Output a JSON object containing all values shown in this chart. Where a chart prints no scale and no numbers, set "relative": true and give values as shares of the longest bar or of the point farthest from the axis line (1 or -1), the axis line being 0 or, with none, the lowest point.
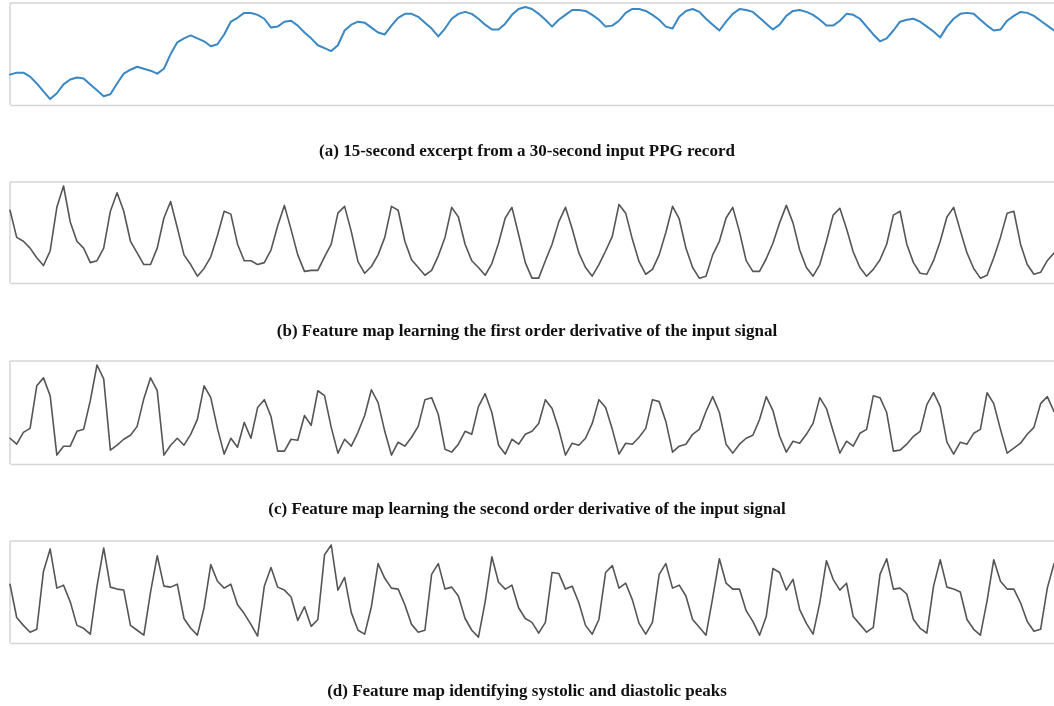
{
  "chart_data": [
    {
      "type": "line",
      "title": "(a) 15-second excerpt from a 30-second input PPG record",
      "relative": true,
      "color": "#3a87c2",
      "categories": [
        null,
        null,
        null,
        null,
        null,
        null,
        null,
        null,
        null,
        null,
        null,
        null,
        null,
        null,
        null,
        null,
        null,
        null,
        null,
        null,
        null,
        null,
        null,
        null,
        null,
        null,
        null,
        null,
        null,
        null,
        null,
        null,
        null,
        null,
        null,
        null,
        null,
        null,
        null,
        null,
        null,
        null,
        null,
        null,
        null,
        null,
        null,
        null,
        null,
        null,
        null,
        null,
        null,
        null,
        null,
        null,
        null,
        null,
        null,
        null,
        null,
        null,
        null,
        null,
        null,
        null,
        null,
        null,
        null,
        null,
        null,
        null,
        null,
        null,
        null,
        null,
        null,
        null,
        null,
        null,
        null,
        null,
        null,
        null,
        null,
        null,
        null,
        null,
        null,
        null,
        null,
        null,
        null,
        null,
        null,
        null,
        null,
        null,
        null,
        null,
        null,
        null,
        null,
        null,
        null,
        null,
        null,
        null,
        null,
        null,
        null,
        null,
        null,
        null,
        null,
        null,
        null,
        null,
        null,
        null,
        null,
        null,
        null,
        null,
        null,
        null,
        null,
        null,
        null,
        null,
        null,
        null,
        null,
        null,
        null,
        null,
        null,
        null,
        null,
        null,
        null,
        null,
        null,
        null,
        null,
        null,
        null,
        null,
        null,
        null,
        null,
        null,
        null,
        null,
        null,
        null,
        null
      ],
      "values": [
        0.31,
        0.33,
        0.33,
        0.29,
        0.22,
        0.14,
        0.06,
        0.12,
        0.21,
        0.26,
        0.28,
        0.27,
        0.21,
        0.15,
        0.09,
        0.11,
        0.22,
        0.32,
        0.36,
        0.39,
        0.37,
        0.35,
        0.32,
        0.37,
        0.52,
        0.64,
        0.68,
        0.71,
        0.68,
        0.65,
        0.6,
        0.62,
        0.72,
        0.85,
        0.89,
        0.94,
        0.94,
        0.92,
        0.88,
        0.79,
        0.8,
        0.85,
        0.86,
        0.81,
        0.74,
        0.68,
        0.61,
        0.58,
        0.55,
        0.61,
        0.76,
        0.82,
        0.85,
        0.84,
        0.79,
        0.74,
        0.72,
        0.81,
        0.89,
        0.93,
        0.93,
        0.9,
        0.84,
        0.78,
        0.7,
        0.78,
        0.88,
        0.93,
        0.95,
        0.93,
        0.88,
        0.82,
        0.77,
        0.77,
        0.83,
        0.92,
        0.98,
        1.0,
        0.98,
        0.93,
        0.87,
        0.8,
        0.87,
        0.92,
        0.97,
        0.97,
        0.96,
        0.92,
        0.87,
        0.8,
        0.81,
        0.86,
        0.94,
        0.98,
        0.98,
        0.96,
        0.92,
        0.87,
        0.8,
        0.78,
        0.9,
        0.96,
        0.98,
        0.95,
        0.88,
        0.82,
        0.76,
        0.85,
        0.93,
        0.98,
        0.97,
        0.95,
        0.89,
        0.83,
        0.77,
        0.82,
        0.91,
        0.96,
        0.97,
        0.95,
        0.92,
        0.87,
        0.81,
        0.81,
        0.86,
        0.93,
        0.92,
        0.88,
        0.8,
        0.72,
        0.65,
        0.68,
        0.76,
        0.85,
        0.87,
        0.88,
        0.85,
        0.8,
        0.75,
        0.69,
        0.8,
        0.88,
        0.93,
        0.94,
        0.93,
        0.87,
        0.81,
        0.76,
        0.77,
        0.86,
        0.91,
        0.95,
        0.94,
        0.91,
        0.86,
        0.81,
        0.76
      ]
    },
    {
      "type": "line",
      "title": "(b) Feature map learning the first order derivative of the input signal",
      "relative": true,
      "color": "#555555",
      "categories": [
        null,
        null,
        null,
        null,
        null,
        null,
        null,
        null,
        null,
        null,
        null,
        null,
        null,
        null,
        null,
        null,
        null,
        null,
        null,
        null,
        null,
        null,
        null,
        null,
        null,
        null,
        null,
        null,
        null,
        null,
        null,
        null,
        null,
        null,
        null,
        null,
        null,
        null,
        null,
        null,
        null,
        null,
        null,
        null,
        null,
        null,
        null,
        null,
        null,
        null,
        null,
        null,
        null,
        null,
        null,
        null,
        null,
        null,
        null,
        null,
        null,
        null,
        null,
        null,
        null,
        null,
        null,
        null,
        null,
        null,
        null,
        null,
        null,
        null,
        null,
        null,
        null,
        null,
        null,
        null,
        null,
        null,
        null,
        null,
        null,
        null,
        null,
        null,
        null,
        null,
        null,
        null,
        null,
        null,
        null,
        null,
        null,
        null,
        null,
        null,
        null,
        null,
        null,
        null,
        null,
        null,
        null,
        null,
        null,
        null,
        null,
        null,
        null,
        null,
        null,
        null,
        null,
        null,
        null,
        null,
        null,
        null,
        null,
        null,
        null,
        null,
        null,
        null,
        null,
        null,
        null,
        null,
        null,
        null,
        null,
        null,
        null,
        null,
        null,
        null,
        null,
        null,
        null,
        null,
        null,
        null,
        null,
        null,
        null,
        null,
        null,
        null,
        null,
        null,
        null,
        null,
        null
      ],
      "values": [
        0.75,
        0.47,
        0.43,
        0.36,
        0.26,
        0.18,
        0.33,
        0.78,
        1.0,
        0.63,
        0.43,
        0.36,
        0.21,
        0.23,
        0.36,
        0.74,
        0.93,
        0.74,
        0.43,
        0.31,
        0.19,
        0.19,
        0.36,
        0.67,
        0.84,
        0.57,
        0.29,
        0.19,
        0.07,
        0.15,
        0.27,
        0.49,
        0.74,
        0.71,
        0.4,
        0.23,
        0.23,
        0.19,
        0.21,
        0.34,
        0.59,
        0.8,
        0.55,
        0.29,
        0.12,
        0.13,
        0.13,
        0.27,
        0.4,
        0.72,
        0.79,
        0.53,
        0.22,
        0.1,
        0.17,
        0.29,
        0.47,
        0.79,
        0.75,
        0.43,
        0.24,
        0.16,
        0.08,
        0.13,
        0.28,
        0.47,
        0.78,
        0.68,
        0.4,
        0.23,
        0.16,
        0.08,
        0.2,
        0.41,
        0.67,
        0.78,
        0.5,
        0.21,
        0.05,
        0.05,
        0.23,
        0.4,
        0.63,
        0.78,
        0.56,
        0.31,
        0.16,
        0.07,
        0.19,
        0.33,
        0.48,
        0.81,
        0.72,
        0.45,
        0.22,
        0.09,
        0.14,
        0.29,
        0.52,
        0.79,
        0.66,
        0.36,
        0.16,
        0.05,
        0.07,
        0.29,
        0.43,
        0.67,
        0.78,
        0.53,
        0.23,
        0.12,
        0.12,
        0.25,
        0.41,
        0.62,
        0.8,
        0.62,
        0.34,
        0.16,
        0.07,
        0.19,
        0.43,
        0.7,
        0.77,
        0.56,
        0.32,
        0.16,
        0.07,
        0.14,
        0.24,
        0.4,
        0.7,
        0.74,
        0.4,
        0.21,
        0.1,
        0.09,
        0.23,
        0.43,
        0.68,
        0.78,
        0.54,
        0.31,
        0.15,
        0.05,
        0.08,
        0.26,
        0.47,
        0.72,
        0.74,
        0.4,
        0.19,
        0.09,
        0.11,
        0.23,
        0.31
      ]
    },
    {
      "type": "line",
      "title": "(c) Feature map learning the second order derivative of the input signal",
      "relative": true,
      "color": "#555555",
      "categories": [
        null,
        null,
        null,
        null,
        null,
        null,
        null,
        null,
        null,
        null,
        null,
        null,
        null,
        null,
        null,
        null,
        null,
        null,
        null,
        null,
        null,
        null,
        null,
        null,
        null,
        null,
        null,
        null,
        null,
        null,
        null,
        null,
        null,
        null,
        null,
        null,
        null,
        null,
        null,
        null,
        null,
        null,
        null,
        null,
        null,
        null,
        null,
        null,
        null,
        null,
        null,
        null,
        null,
        null,
        null,
        null,
        null,
        null,
        null,
        null,
        null,
        null,
        null,
        null,
        null,
        null,
        null,
        null,
        null,
        null,
        null,
        null,
        null,
        null,
        null,
        null,
        null,
        null,
        null,
        null,
        null,
        null,
        null,
        null,
        null,
        null,
        null,
        null,
        null,
        null,
        null,
        null,
        null,
        null,
        null,
        null,
        null,
        null,
        null,
        null,
        null,
        null,
        null,
        null,
        null,
        null,
        null,
        null,
        null,
        null,
        null,
        null,
        null,
        null,
        null,
        null,
        null,
        null,
        null,
        null,
        null,
        null,
        null,
        null,
        null,
        null,
        null,
        null,
        null,
        null,
        null,
        null,
        null,
        null,
        null,
        null,
        null,
        null,
        null,
        null,
        null,
        null,
        null,
        null,
        null,
        null,
        null,
        null,
        null,
        null,
        null,
        null,
        null,
        null,
        null,
        null,
        null
      ],
      "values": [
        0.26,
        0.2,
        0.32,
        0.36,
        0.79,
        0.87,
        0.69,
        0.09,
        0.18,
        0.18,
        0.33,
        0.35,
        0.64,
        1.0,
        0.86,
        0.14,
        0.19,
        0.25,
        0.29,
        0.38,
        0.66,
        0.87,
        0.74,
        0.09,
        0.19,
        0.26,
        0.19,
        0.3,
        0.45,
        0.79,
        0.67,
        0.36,
        0.1,
        0.26,
        0.17,
        0.42,
        0.26,
        0.57,
        0.65,
        0.48,
        0.13,
        0.13,
        0.25,
        0.24,
        0.49,
        0.39,
        0.74,
        0.69,
        0.37,
        0.11,
        0.25,
        0.18,
        0.32,
        0.49,
        0.75,
        0.62,
        0.33,
        0.09,
        0.22,
        0.18,
        0.27,
        0.38,
        0.65,
        0.67,
        0.5,
        0.15,
        0.12,
        0.2,
        0.33,
        0.3,
        0.58,
        0.71,
        0.52,
        0.19,
        0.1,
        0.25,
        0.2,
        0.3,
        0.33,
        0.41,
        0.65,
        0.56,
        0.35,
        0.09,
        0.21,
        0.19,
        0.26,
        0.41,
        0.65,
        0.57,
        0.35,
        0.1,
        0.21,
        0.2,
        0.27,
        0.36,
        0.65,
        0.63,
        0.43,
        0.12,
        0.18,
        0.2,
        0.3,
        0.35,
        0.53,
        0.68,
        0.52,
        0.2,
        0.11,
        0.2,
        0.26,
        0.29,
        0.45,
        0.68,
        0.54,
        0.28,
        0.12,
        0.23,
        0.21,
        0.3,
        0.41,
        0.67,
        0.56,
        0.33,
        0.11,
        0.23,
        0.18,
        0.31,
        0.35,
        0.69,
        0.67,
        0.52,
        0.13,
        0.14,
        0.2,
        0.28,
        0.33,
        0.6,
        0.72,
        0.58,
        0.22,
        0.1,
        0.22,
        0.2,
        0.31,
        0.35,
        0.72,
        0.61,
        0.35,
        0.11,
        0.16,
        0.21,
        0.3,
        0.37,
        0.61,
        0.68,
        0.53
      ]
    },
    {
      "type": "line",
      "title": "(d) Feature map identifying systolic and diastolic peaks",
      "relative": true,
      "color": "#555555",
      "categories": [
        null,
        null,
        null,
        null,
        null,
        null,
        null,
        null,
        null,
        null,
        null,
        null,
        null,
        null,
        null,
        null,
        null,
        null,
        null,
        null,
        null,
        null,
        null,
        null,
        null,
        null,
        null,
        null,
        null,
        null,
        null,
        null,
        null,
        null,
        null,
        null,
        null,
        null,
        null,
        null,
        null,
        null,
        null,
        null,
        null,
        null,
        null,
        null,
        null,
        null,
        null,
        null,
        null,
        null,
        null,
        null,
        null,
        null,
        null,
        null,
        null,
        null,
        null,
        null,
        null,
        null,
        null,
        null,
        null,
        null,
        null,
        null,
        null,
        null,
        null,
        null,
        null,
        null,
        null,
        null,
        null,
        null,
        null,
        null,
        null,
        null,
        null,
        null,
        null,
        null,
        null,
        null,
        null,
        null,
        null,
        null,
        null,
        null,
        null,
        null,
        null,
        null,
        null,
        null,
        null,
        null,
        null,
        null,
        null,
        null,
        null,
        null,
        null,
        null,
        null,
        null,
        null,
        null,
        null,
        null,
        null,
        null,
        null,
        null,
        null,
        null,
        null,
        null,
        null,
        null,
        null,
        null,
        null,
        null,
        null,
        null,
        null,
        null,
        null,
        null,
        null,
        null,
        null,
        null,
        null,
        null,
        null,
        null,
        null,
        null,
        null,
        null,
        null,
        null,
        null,
        null,
        null
      ],
      "values": [
        0.6,
        0.26,
        0.18,
        0.11,
        0.14,
        0.73,
        0.96,
        0.56,
        0.59,
        0.42,
        0.18,
        0.15,
        0.09,
        0.58,
        0.97,
        0.57,
        0.55,
        0.54,
        0.18,
        0.13,
        0.08,
        0.52,
        0.89,
        0.58,
        0.57,
        0.6,
        0.25,
        0.15,
        0.08,
        0.36,
        0.8,
        0.63,
        0.56,
        0.6,
        0.39,
        0.3,
        0.19,
        0.07,
        0.58,
        0.77,
        0.57,
        0.54,
        0.47,
        0.23,
        0.37,
        0.17,
        0.24,
        0.9,
        1.0,
        0.54,
        0.67,
        0.31,
        0.13,
        0.09,
        0.37,
        0.81,
        0.66,
        0.56,
        0.55,
        0.39,
        0.19,
        0.11,
        0.13,
        0.7,
        0.81,
        0.55,
        0.57,
        0.48,
        0.25,
        0.13,
        0.06,
        0.42,
        0.88,
        0.62,
        0.55,
        0.59,
        0.36,
        0.25,
        0.21,
        0.1,
        0.21,
        0.72,
        0.71,
        0.55,
        0.58,
        0.41,
        0.18,
        0.09,
        0.24,
        0.72,
        0.79,
        0.56,
        0.61,
        0.44,
        0.2,
        0.09,
        0.21,
        0.7,
        0.81,
        0.56,
        0.59,
        0.48,
        0.24,
        0.16,
        0.08,
        0.46,
        0.86,
        0.61,
        0.55,
        0.55,
        0.33,
        0.22,
        0.08,
        0.27,
        0.76,
        0.72,
        0.54,
        0.65,
        0.34,
        0.2,
        0.09,
        0.41,
        0.84,
        0.65,
        0.54,
        0.61,
        0.27,
        0.19,
        0.11,
        0.16,
        0.7,
        0.86,
        0.55,
        0.56,
        0.5,
        0.24,
        0.15,
        0.1,
        0.58,
        0.85,
        0.57,
        0.55,
        0.52,
        0.24,
        0.14,
        0.08,
        0.43,
        0.85,
        0.63,
        0.55,
        0.55,
        0.41,
        0.22,
        0.12,
        0.14,
        0.56,
        0.81
      ]
    }
  ]
}
